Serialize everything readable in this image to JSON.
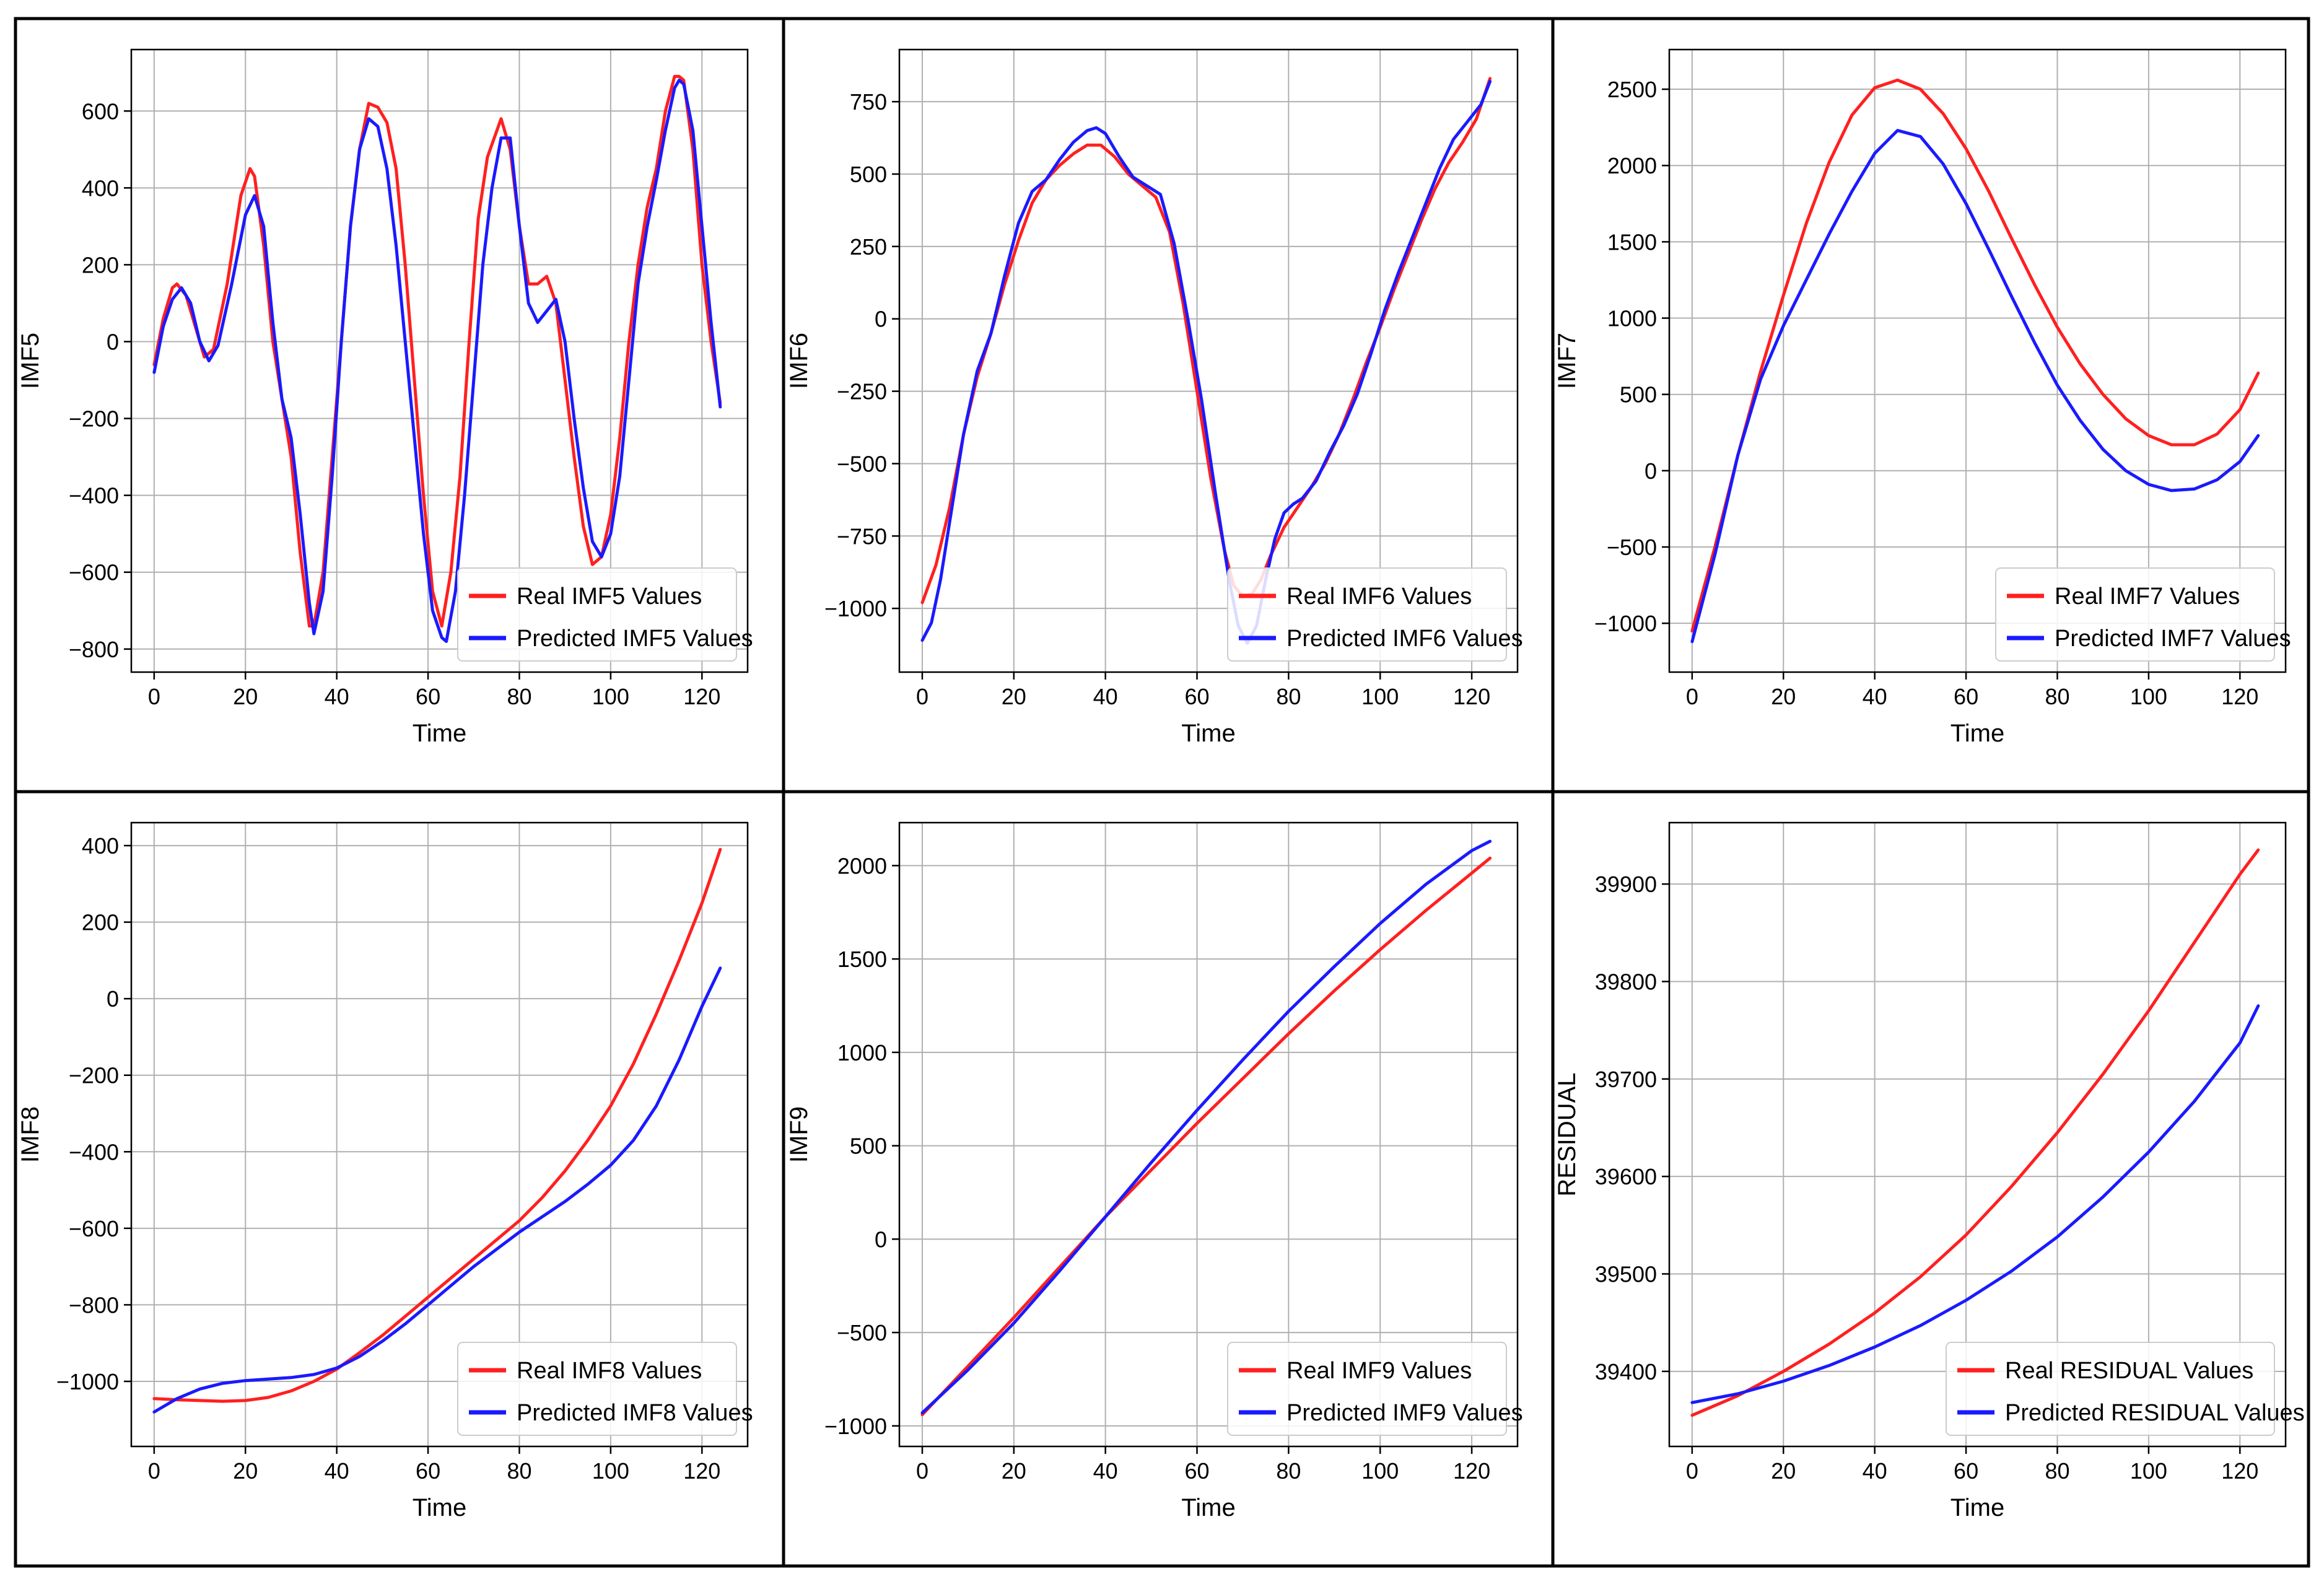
{
  "colors": {
    "real": "#ff2020",
    "predicted": "#1a1aff"
  },
  "chart_data": [
    {
      "type": "line",
      "ylabel": "IMF5",
      "xlabel": "Time",
      "xlim": [
        -5,
        130
      ],
      "ylim": [
        -860,
        760
      ],
      "xticks": [
        0,
        20,
        40,
        60,
        80,
        100,
        120
      ],
      "yticks": [
        -800,
        -600,
        -400,
        -200,
        0,
        200,
        400,
        600
      ],
      "ytick_labels": [
        "−800",
        "−600",
        "−400",
        "−200",
        "0",
        "200",
        "400",
        "600"
      ],
      "legend_position": "lower-right",
      "series": [
        {
          "name": "Real IMF5 Values",
          "color_key": "real",
          "x": [
            0,
            2,
            4,
            5,
            7,
            9,
            11,
            13,
            16,
            19,
            21,
            22,
            24,
            26,
            28,
            30,
            32,
            34,
            35,
            37,
            39,
            41,
            43,
            45,
            47,
            49,
            51,
            53,
            55,
            57,
            59,
            61,
            63,
            65,
            67,
            69,
            71,
            73,
            76,
            78,
            80,
            82,
            84,
            86,
            88,
            90,
            92,
            94,
            96,
            98,
            100,
            102,
            104,
            106,
            108,
            110,
            112,
            114,
            115,
            116,
            118,
            120,
            122,
            124
          ],
          "y": [
            -60,
            60,
            140,
            150,
            120,
            40,
            -40,
            -20,
            150,
            380,
            450,
            430,
            250,
            0,
            -150,
            -300,
            -550,
            -740,
            -740,
            -600,
            -300,
            0,
            300,
            500,
            620,
            610,
            570,
            450,
            200,
            -100,
            -400,
            -650,
            -740,
            -600,
            -350,
            0,
            320,
            480,
            580,
            500,
            300,
            150,
            150,
            170,
            100,
            -100,
            -300,
            -480,
            -580,
            -560,
            -450,
            -250,
            0,
            200,
            350,
            450,
            600,
            690,
            690,
            680,
            500,
            200,
            0,
            -160
          ]
        },
        {
          "name": "Predicted IMF5 Values",
          "color_key": "predicted",
          "x": [
            0,
            2,
            4,
            6,
            8,
            10,
            12,
            14,
            17,
            20,
            22,
            24,
            26,
            28,
            30,
            32,
            34,
            35,
            37,
            39,
            41,
            43,
            45,
            47,
            49,
            51,
            53,
            55,
            57,
            59,
            61,
            63,
            64,
            66,
            68,
            70,
            72,
            74,
            76,
            78,
            80,
            82,
            84,
            86,
            88,
            90,
            92,
            94,
            96,
            98,
            100,
            102,
            104,
            106,
            108,
            110,
            112,
            114,
            115,
            116,
            118,
            120,
            122,
            124
          ],
          "y": [
            -80,
            40,
            110,
            140,
            100,
            0,
            -50,
            -10,
            150,
            330,
            380,
            300,
            50,
            -150,
            -250,
            -450,
            -680,
            -760,
            -650,
            -350,
            0,
            300,
            500,
            580,
            560,
            450,
            250,
            0,
            -250,
            -500,
            -700,
            -770,
            -780,
            -650,
            -400,
            -100,
            200,
            400,
            530,
            530,
            300,
            100,
            50,
            80,
            110,
            0,
            -200,
            -380,
            -520,
            -560,
            -500,
            -350,
            -100,
            150,
            300,
            420,
            550,
            660,
            680,
            670,
            550,
            300,
            50,
            -170
          ]
        }
      ]
    },
    {
      "type": "line",
      "ylabel": "IMF6",
      "xlabel": "Time",
      "xlim": [
        -5,
        130
      ],
      "ylim": [
        -1220,
        930
      ],
      "xticks": [
        0,
        20,
        40,
        60,
        80,
        100,
        120
      ],
      "yticks": [
        -1000,
        -750,
        -500,
        -250,
        0,
        250,
        500,
        750
      ],
      "ytick_labels": [
        "−1000",
        "−750",
        "−500",
        "−250",
        "0",
        "250",
        "500",
        "750"
      ],
      "legend_position": "lower-right",
      "series": [
        {
          "name": "Real IMF6 Values",
          "color_key": "real",
          "x": [
            0,
            3,
            6,
            9,
            12,
            15,
            18,
            21,
            24,
            27,
            30,
            33,
            36,
            39,
            42,
            45,
            48,
            51,
            54,
            57,
            60,
            63,
            66,
            68,
            70,
            72,
            74,
            76,
            79,
            82,
            85,
            88,
            91,
            94,
            97,
            100,
            103,
            106,
            109,
            112,
            115,
            118,
            121,
            124
          ],
          "y": [
            -980,
            -850,
            -650,
            -400,
            -200,
            -50,
            120,
            270,
            400,
            480,
            530,
            570,
            600,
            600,
            560,
            500,
            460,
            420,
            300,
            50,
            -250,
            -550,
            -800,
            -920,
            -960,
            -950,
            -900,
            -820,
            -720,
            -650,
            -580,
            -500,
            -400,
            -280,
            -150,
            -30,
            100,
            220,
            340,
            450,
            540,
            610,
            690,
            830
          ]
        },
        {
          "name": "Predicted IMF6 Values",
          "color_key": "predicted",
          "x": [
            0,
            2,
            4,
            6,
            9,
            12,
            15,
            18,
            21,
            24,
            27,
            30,
            33,
            36,
            38,
            40,
            43,
            46,
            49,
            52,
            55,
            58,
            61,
            64,
            67,
            69,
            71,
            73,
            75,
            77,
            79,
            81,
            83,
            86,
            89,
            92,
            95,
            98,
            101,
            104,
            107,
            110,
            113,
            116,
            119,
            122,
            124
          ],
          "y": [
            -1110,
            -1050,
            -900,
            -700,
            -400,
            -180,
            -50,
            150,
            330,
            440,
            480,
            550,
            610,
            650,
            660,
            640,
            560,
            490,
            460,
            430,
            260,
            0,
            -280,
            -600,
            -900,
            -1060,
            -1120,
            -1060,
            -900,
            -760,
            -670,
            -640,
            -620,
            -560,
            -460,
            -370,
            -260,
            -120,
            30,
            160,
            280,
            400,
            520,
            620,
            680,
            740,
            820
          ]
        }
      ]
    },
    {
      "type": "line",
      "ylabel": "IMF7",
      "xlabel": "Time",
      "xlim": [
        -5,
        130
      ],
      "ylim": [
        -1320,
        2760
      ],
      "xticks": [
        0,
        20,
        40,
        60,
        80,
        100,
        120
      ],
      "yticks": [
        -1000,
        -500,
        0,
        500,
        1000,
        1500,
        2000,
        2500
      ],
      "ytick_labels": [
        "−1000",
        "−500",
        "0",
        "500",
        "1000",
        "1500",
        "2000",
        "2500"
      ],
      "legend_position": "lower-right",
      "series": [
        {
          "name": "Real IMF7 Values",
          "color_key": "real",
          "x": [
            0,
            5,
            10,
            15,
            20,
            25,
            30,
            35,
            40,
            45,
            50,
            55,
            60,
            65,
            70,
            75,
            80,
            85,
            90,
            95,
            100,
            105,
            110,
            115,
            120,
            124
          ],
          "y": [
            -1050,
            -500,
            100,
            650,
            1150,
            1620,
            2020,
            2330,
            2510,
            2560,
            2500,
            2340,
            2110,
            1830,
            1520,
            1220,
            940,
            700,
            500,
            340,
            230,
            170,
            170,
            240,
            400,
            640
          ]
        },
        {
          "name": "Predicted IMF7 Values",
          "color_key": "predicted",
          "x": [
            0,
            5,
            10,
            15,
            20,
            25,
            30,
            35,
            40,
            45,
            50,
            55,
            60,
            65,
            70,
            75,
            80,
            85,
            90,
            95,
            100,
            105,
            110,
            115,
            120,
            124
          ],
          "y": [
            -1120,
            -550,
            100,
            600,
            950,
            1250,
            1550,
            1830,
            2080,
            2230,
            2190,
            2010,
            1750,
            1450,
            1140,
            840,
            560,
            330,
            140,
            0,
            -90,
            -130,
            -120,
            -60,
            60,
            230
          ]
        }
      ]
    },
    {
      "type": "line",
      "ylabel": "IMF8",
      "xlabel": "Time",
      "xlim": [
        -5,
        130
      ],
      "ylim": [
        -1170,
        460
      ],
      "xticks": [
        0,
        20,
        40,
        60,
        80,
        100,
        120
      ],
      "yticks": [
        -1000,
        -800,
        -600,
        -400,
        -200,
        0,
        200,
        400
      ],
      "ytick_labels": [
        "−1000",
        "−800",
        "−600",
        "−400",
        "−200",
        "0",
        "200",
        "400"
      ],
      "legend_position": "lower-right",
      "series": [
        {
          "name": "Real IMF8 Values",
          "color_key": "real",
          "x": [
            0,
            5,
            10,
            15,
            20,
            25,
            30,
            35,
            40,
            45,
            50,
            55,
            60,
            65,
            70,
            75,
            80,
            85,
            90,
            95,
            100,
            105,
            110,
            115,
            120,
            124
          ],
          "y": [
            -1045,
            -1048,
            -1050,
            -1052,
            -1050,
            -1042,
            -1025,
            -1000,
            -968,
            -925,
            -880,
            -830,
            -780,
            -730,
            -680,
            -630,
            -580,
            -520,
            -450,
            -370,
            -280,
            -170,
            -40,
            100,
            250,
            390
          ]
        },
        {
          "name": "Predicted IMF8 Values",
          "color_key": "predicted",
          "x": [
            0,
            5,
            10,
            15,
            20,
            25,
            30,
            35,
            40,
            45,
            50,
            55,
            60,
            65,
            70,
            75,
            80,
            85,
            90,
            95,
            100,
            105,
            110,
            115,
            120,
            124
          ],
          "y": [
            -1080,
            -1045,
            -1020,
            -1005,
            -998,
            -994,
            -990,
            -982,
            -965,
            -935,
            -895,
            -850,
            -800,
            -750,
            -700,
            -655,
            -610,
            -570,
            -530,
            -485,
            -435,
            -370,
            -280,
            -160,
            -20,
            80
          ]
        }
      ]
    },
    {
      "type": "line",
      "ylabel": "IMF9",
      "xlabel": "Time",
      "xlim": [
        -5,
        130
      ],
      "ylim": [
        -1110,
        2230
      ],
      "xticks": [
        0,
        20,
        40,
        60,
        80,
        100,
        120
      ],
      "yticks": [
        -1000,
        -500,
        0,
        500,
        1000,
        1500,
        2000
      ],
      "ytick_labels": [
        "−1000",
        "−500",
        "0",
        "500",
        "1000",
        "1500",
        "2000"
      ],
      "legend_position": "lower-right",
      "series": [
        {
          "name": "Real IMF9 Values",
          "color_key": "real",
          "x": [
            0,
            10,
            20,
            30,
            40,
            50,
            60,
            70,
            80,
            90,
            100,
            110,
            120,
            124
          ],
          "y": [
            -940,
            -680,
            -420,
            -150,
            120,
            370,
            620,
            860,
            1100,
            1330,
            1550,
            1760,
            1960,
            2040
          ]
        },
        {
          "name": "Predicted IMF9 Values",
          "color_key": "predicted",
          "x": [
            0,
            10,
            20,
            30,
            40,
            50,
            60,
            70,
            80,
            90,
            100,
            110,
            120,
            124
          ],
          "y": [
            -930,
            -700,
            -450,
            -170,
            120,
            410,
            690,
            960,
            1220,
            1460,
            1690,
            1900,
            2080,
            2130
          ]
        }
      ]
    },
    {
      "type": "line",
      "ylabel": "RESIDUAL",
      "xlabel": "Time",
      "xlim": [
        -5,
        130
      ],
      "ylim": [
        39323,
        39963
      ],
      "xticks": [
        0,
        20,
        40,
        60,
        80,
        100,
        120
      ],
      "yticks": [
        39400,
        39500,
        39600,
        39700,
        39800,
        39900
      ],
      "ytick_labels": [
        "39400",
        "39500",
        "39600",
        "39700",
        "39800",
        "39900"
      ],
      "legend_position": "lower-right",
      "series": [
        {
          "name": "Real RESIDUAL Values",
          "color_key": "real",
          "x": [
            0,
            10,
            20,
            30,
            40,
            50,
            60,
            70,
            80,
            90,
            100,
            110,
            120,
            124
          ],
          "y": [
            39355,
            39375,
            39400,
            39428,
            39460,
            39497,
            39540,
            39590,
            39645,
            39705,
            39770,
            39840,
            39910,
            39935
          ]
        },
        {
          "name": "Predicted RESIDUAL Values",
          "color_key": "predicted",
          "x": [
            0,
            10,
            20,
            30,
            40,
            50,
            60,
            70,
            80,
            90,
            100,
            110,
            120,
            124
          ],
          "y": [
            39368,
            39377,
            39390,
            39406,
            39425,
            39447,
            39473,
            39503,
            39538,
            39579,
            39625,
            39677,
            39737,
            39775
          ]
        }
      ]
    }
  ]
}
